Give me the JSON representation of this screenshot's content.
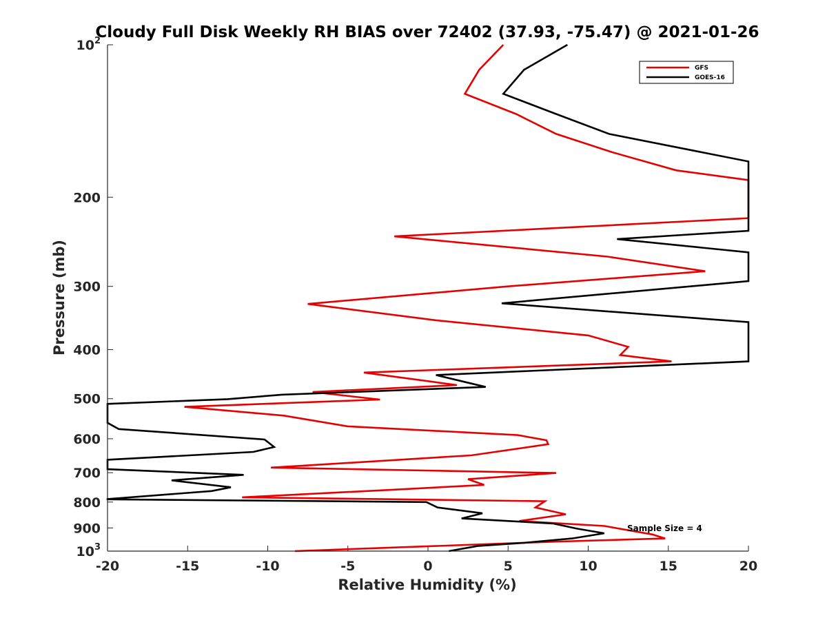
{
  "chart_data": {
    "type": "line",
    "title": "Cloudy Full Disk Weekly RH BIAS over 72402 (37.93, -75.47) @ 2021-01-26",
    "xlabel": "Relative Humidity (%)",
    "ylabel": "Pressure (mb)",
    "xlim": [
      -20,
      20
    ],
    "ylim": [
      100,
      1000
    ],
    "y_scale": "log",
    "y_reversed": true,
    "x_ticks": [
      -20,
      -15,
      -10,
      -5,
      0,
      5,
      10,
      15,
      20
    ],
    "x_tick_labels": [
      "-20",
      "-15",
      "-10",
      "-5",
      "0",
      "5",
      "10",
      "15",
      "20"
    ],
    "y_ticks": [
      100,
      200,
      300,
      400,
      500,
      600,
      700,
      800,
      900,
      1000
    ],
    "y_tick_labels": [
      {
        "base": "10",
        "sup": "2"
      },
      {
        "base": "200",
        "sup": ""
      },
      {
        "base": "300",
        "sup": ""
      },
      {
        "base": "400",
        "sup": ""
      },
      {
        "base": "500",
        "sup": ""
      },
      {
        "base": "600",
        "sup": ""
      },
      {
        "base": "700",
        "sup": ""
      },
      {
        "base": "800",
        "sup": ""
      },
      {
        "base": "900",
        "sup": ""
      },
      {
        "base": "10",
        "sup": "3"
      }
    ],
    "grid": false,
    "legend_position": "top-right",
    "annotation": "Sample Size = 4",
    "series": [
      {
        "name": "GFS",
        "color": "#e60000",
        "points": [
          [
            4.7,
            100
          ],
          [
            3.2,
            112
          ],
          [
            2.3,
            125
          ],
          [
            5.5,
            137
          ],
          [
            8.0,
            150
          ],
          [
            11.5,
            163
          ],
          [
            15.5,
            177
          ],
          [
            20.0,
            185
          ],
          [
            20.0,
            220
          ],
          [
            -2.1,
            239
          ],
          [
            11.2,
            262
          ],
          [
            17.3,
            280
          ],
          [
            5.0,
            300
          ],
          [
            -7.5,
            325
          ],
          [
            0.5,
            350
          ],
          [
            10.0,
            375
          ],
          [
            12.5,
            395
          ],
          [
            12.0,
            410
          ],
          [
            15.2,
            422
          ],
          [
            -4.0,
            444
          ],
          [
            1.8,
            470
          ],
          [
            -7.2,
            485
          ],
          [
            -3.0,
            502
          ],
          [
            -15.2,
            519
          ],
          [
            -9.0,
            540
          ],
          [
            -5.0,
            567
          ],
          [
            5.6,
            590
          ],
          [
            7.4,
            604
          ],
          [
            7.5,
            615
          ],
          [
            2.7,
            647
          ],
          [
            -9.8,
            684
          ],
          [
            8.0,
            701
          ],
          [
            2.5,
            721
          ],
          [
            3.5,
            740
          ],
          [
            -2.0,
            756
          ],
          [
            -11.6,
            783
          ],
          [
            7.3,
            797
          ],
          [
            6.7,
            820
          ],
          [
            8.6,
            846
          ],
          [
            5.7,
            872
          ],
          [
            11.0,
            892
          ],
          [
            14.0,
            927
          ],
          [
            14.8,
            944
          ],
          [
            8.3,
            957
          ],
          [
            -8.3,
            1000
          ]
        ]
      },
      {
        "name": "GOES-16",
        "color": "#000000",
        "points": [
          [
            8.7,
            100
          ],
          [
            6.0,
            112
          ],
          [
            4.7,
            125
          ],
          [
            8.0,
            137
          ],
          [
            11.3,
            150
          ],
          [
            20.0,
            170
          ],
          [
            20.0,
            233
          ],
          [
            11.8,
            242
          ],
          [
            20.0,
            257
          ],
          [
            20.0,
            293
          ],
          [
            4.6,
            324
          ],
          [
            20.0,
            353
          ],
          [
            20.0,
            422
          ],
          [
            0.5,
            449
          ],
          [
            3.6,
            474
          ],
          [
            -9.1,
            491
          ],
          [
            -12.5,
            501
          ],
          [
            -20.0,
            512
          ],
          [
            -20.0,
            558
          ],
          [
            -19.3,
            574
          ],
          [
            -10.2,
            602
          ],
          [
            -9.6,
            623
          ],
          [
            -10.9,
            637
          ],
          [
            -20.0,
            660
          ],
          [
            -20.0,
            689
          ],
          [
            -11.5,
            707
          ],
          [
            -16.0,
            725
          ],
          [
            -12.3,
            748
          ],
          [
            -13.5,
            761
          ],
          [
            -20.0,
            789
          ],
          [
            -20.0,
            790
          ],
          [
            -0.1,
            800
          ],
          [
            0.6,
            820
          ],
          [
            3.4,
            842
          ],
          [
            2.1,
            862
          ],
          [
            7.8,
            882
          ],
          [
            9.3,
            903
          ],
          [
            11.0,
            922
          ],
          [
            9.0,
            944
          ],
          [
            6.0,
            963
          ],
          [
            3.1,
            977
          ],
          [
            1.3,
            1000
          ]
        ]
      }
    ]
  }
}
